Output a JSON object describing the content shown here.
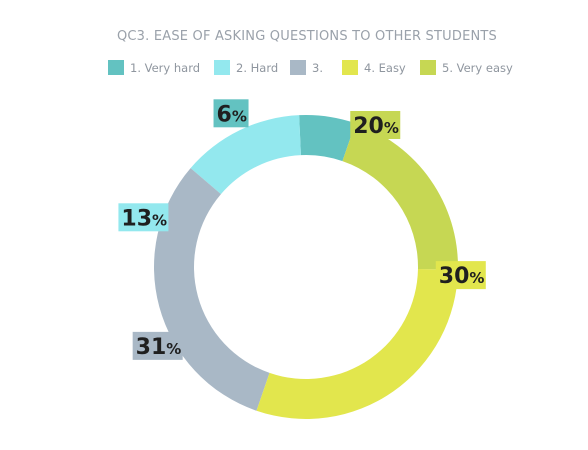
{
  "chart_data": {
    "type": "donut",
    "title": "QC3. EASE OF ASKING QUESTIONS TO OTHER STUDENTS",
    "categories": [
      "1. Very hard",
      "2. Hard",
      "3.",
      "4. Easy",
      "5. Very easy"
    ],
    "values": [
      6,
      13,
      31,
      30,
      20
    ],
    "unit": "%",
    "colors": [
      "#63c2c1",
      "#93e8ee",
      "#a9b8c6",
      "#e2e64d",
      "#c6d753"
    ],
    "legend_position": "top"
  }
}
